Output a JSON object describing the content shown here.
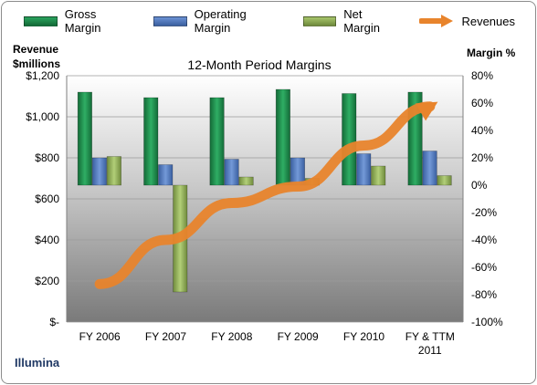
{
  "chart_data": {
    "type": "bar",
    "title": "12-Month Period Margins",
    "categories": [
      "FY 2006",
      "FY 2007",
      "FY 2008",
      "FY 2009",
      "FY 2010",
      "FY & TTM 2011"
    ],
    "series": [
      {
        "name": "Gross Margin",
        "axis": "right",
        "color": "#1e8a4c",
        "values": [
          68,
          64,
          64,
          70,
          67,
          68
        ]
      },
      {
        "name": "Operating Margin",
        "axis": "right",
        "color": "#4f77bd",
        "values": [
          20,
          15,
          19,
          20,
          23,
          25
        ]
      },
      {
        "name": "Net Margin",
        "axis": "right",
        "color": "#8fac55",
        "values": [
          21,
          -78,
          6,
          5,
          14,
          7
        ]
      },
      {
        "name": "Revenues",
        "type": "line",
        "axis": "left",
        "color": "#e8842c",
        "values": [
          185,
          400,
          580,
          660,
          860,
          1050
        ]
      }
    ],
    "left_axis": {
      "label_line1": "Revenue",
      "label_line2": "$millions",
      "range": [
        0,
        1200
      ],
      "tick_labels": [
        "$-",
        "$200",
        "$400",
        "$600",
        "$800",
        "$1,000",
        "$1,200"
      ]
    },
    "right_axis": {
      "label": "Margin %",
      "range": [
        -100,
        80
      ],
      "tick_labels": [
        "-100%",
        "-80%",
        "-60%",
        "-40%",
        "-20%",
        "0%",
        "20%",
        "40%",
        "60%",
        "80%"
      ]
    },
    "category_labels": [
      [
        "FY 2006"
      ],
      [
        "FY 2007"
      ],
      [
        "FY 2008"
      ],
      [
        "FY 2009"
      ],
      [
        "FY 2010"
      ],
      [
        "FY & TTM",
        "2011"
      ]
    ],
    "grid": true,
    "legend_position": "top"
  },
  "company": "Illumina"
}
